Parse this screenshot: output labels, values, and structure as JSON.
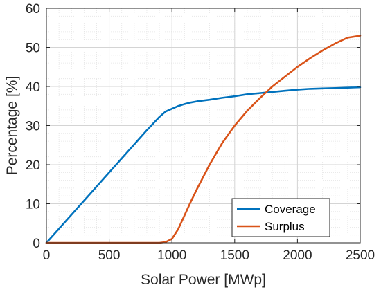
{
  "chart_data": {
    "type": "line",
    "xlabel": "Solar Power [MWp]",
    "ylabel": "Percentage [%]",
    "xlim": [
      0,
      2500
    ],
    "ylim": [
      0,
      60
    ],
    "xticks": [
      0,
      500,
      1000,
      1500,
      2000,
      2500
    ],
    "yticks": [
      0,
      10,
      20,
      30,
      40,
      50,
      60
    ],
    "grid": "major and minor",
    "legend_position": "bottom-right",
    "series": [
      {
        "name": "Coverage",
        "color": "#0072BD",
        "x": [
          0,
          100,
          200,
          300,
          400,
          500,
          600,
          700,
          800,
          900,
          950,
          1000,
          1050,
          1100,
          1150,
          1200,
          1300,
          1400,
          1500,
          1600,
          1700,
          1800,
          1900,
          2000,
          2100,
          2200,
          2300,
          2400,
          2500
        ],
        "y": [
          0,
          3.6,
          7.2,
          10.8,
          14.4,
          18.0,
          21.6,
          25.2,
          28.8,
          32.2,
          33.6,
          34.3,
          35.0,
          35.5,
          35.9,
          36.2,
          36.6,
          37.1,
          37.5,
          38.0,
          38.3,
          38.6,
          38.9,
          39.2,
          39.4,
          39.5,
          39.6,
          39.7,
          39.8
        ]
      },
      {
        "name": "Surplus",
        "color": "#D95319",
        "x": [
          0,
          100,
          200,
          300,
          400,
          500,
          600,
          700,
          800,
          900,
          950,
          1000,
          1050,
          1100,
          1150,
          1200,
          1300,
          1400,
          1500,
          1600,
          1700,
          1800,
          1900,
          2000,
          2100,
          2200,
          2300,
          2400,
          2500
        ],
        "y": [
          0,
          0,
          0,
          0,
          0,
          0,
          0,
          0,
          0,
          0,
          0.2,
          1.0,
          3.5,
          7.0,
          10.5,
          13.8,
          20.0,
          25.5,
          30.0,
          33.8,
          37.0,
          40.0,
          42.5,
          45.0,
          47.2,
          49.2,
          51.0,
          52.5,
          53.0
        ]
      }
    ]
  }
}
